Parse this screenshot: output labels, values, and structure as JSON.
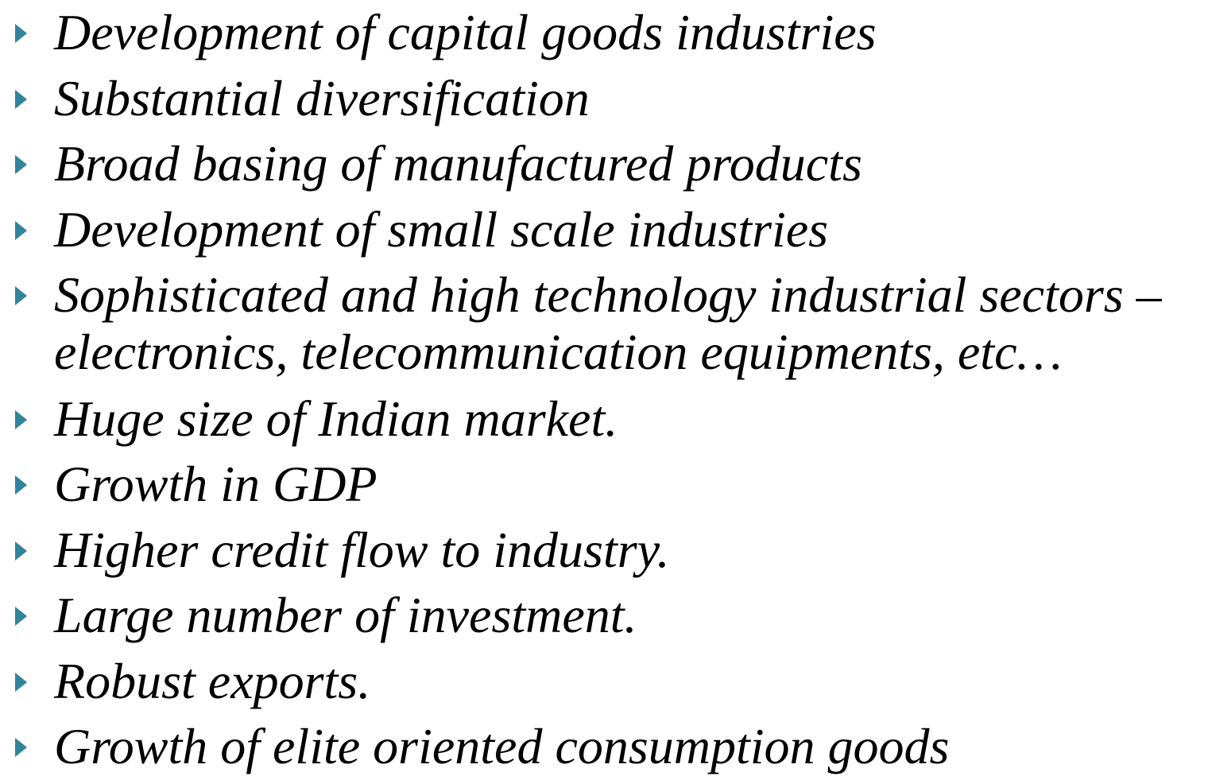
{
  "items": [
    "Development of capital goods industries",
    "Substantial diversification",
    "Broad basing of manufactured products",
    "Development of small scale industries",
    [
      "Sophisticated and high technology industrial sectors –",
      "electronics, telecommunication equipments, etc…"
    ],
    "Huge size of Indian market.",
    "Growth in GDP",
    "Higher credit flow to industry.",
    "Large number of investment.",
    "Robust exports.",
    "Growth of elite oriented consumption goods"
  ]
}
